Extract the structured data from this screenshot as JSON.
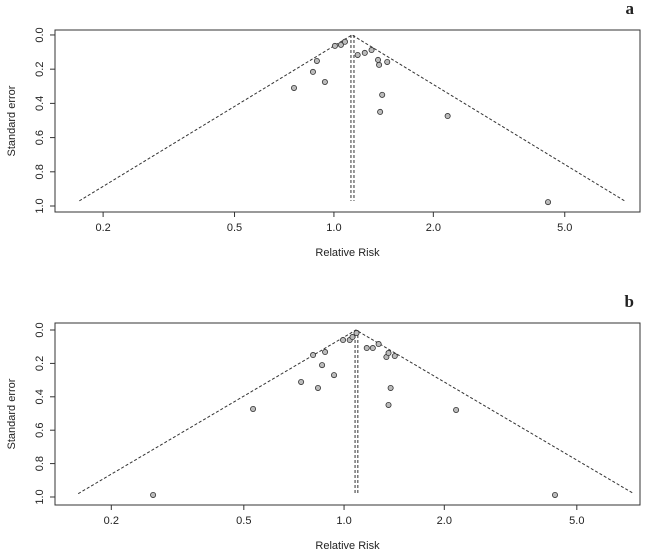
{
  "chart_data": [
    {
      "type": "funnel",
      "panel_label": "a",
      "x_label": "Relative Risk",
      "y_label": "Standard error",
      "log_x": true,
      "y_inverted": true,
      "xlim": [
        0.143,
        8.45
      ],
      "ylim": [
        -0.029,
        1.035
      ],
      "xticks": [
        0.2,
        0.5,
        {
          "value": 1,
          "label": "1.0"
        },
        {
          "value": 2,
          "label": "2.0"
        },
        {
          "value": 5,
          "label": "5.0"
        }
      ],
      "yticks": [
        {
          "value": 0,
          "label": "0.0"
        },
        0.2,
        0.4,
        0.6,
        0.8,
        {
          "value": 1,
          "label": "1.0"
        }
      ],
      "summary_estimate": 1.134,
      "funnel_se_max": 0.97,
      "reference_lines": [
        1.126,
        1.15
      ],
      "point_color": "#bbbbbb",
      "x": [
        1.007,
        1.05,
        1.08,
        1.18,
        1.24,
        1.3,
        1.36,
        1.37,
        1.45,
        0.888,
        0.864,
        0.939,
        0.757,
        1.4,
        1.38,
        2.21,
        4.45
      ],
      "values": [
        0.064,
        0.058,
        0.04,
        0.117,
        0.105,
        0.088,
        0.146,
        0.175,
        0.158,
        0.152,
        0.216,
        0.275,
        0.31,
        0.35,
        0.45,
        0.474,
        0.977
      ]
    },
    {
      "type": "funnel",
      "panel_label": "b",
      "x_label": "Relative Risk",
      "y_label": "Standard error",
      "log_x": true,
      "y_inverted": true,
      "xlim": [
        0.1355,
        7.74
      ],
      "ylim": [
        -0.042,
        1.048
      ],
      "xticks": [
        0.2,
        0.5,
        {
          "value": 1,
          "label": "1.0"
        },
        {
          "value": 2,
          "label": "2.0"
        },
        {
          "value": 5,
          "label": "5.0"
        }
      ],
      "yticks": [
        {
          "value": 0,
          "label": "0.0"
        },
        0.2,
        0.4,
        0.6,
        0.8,
        {
          "value": 1,
          "label": "1.0"
        }
      ],
      "summary_estimate": 1.086,
      "funnel_se_max": 0.98,
      "reference_lines": [
        1.079,
        1.1
      ],
      "point_color": "#bbbbbb",
      "x": [
        0.267,
        0.533,
        0.743,
        0.835,
        0.807,
        0.877,
        0.859,
        0.933,
        0.993,
        1.04,
        1.06,
        1.09,
        1.17,
        1.22,
        1.27,
        1.34,
        1.36,
        1.42,
        1.38,
        1.36,
        2.17,
        4.3
      ],
      "values": [
        0.988,
        0.473,
        0.311,
        0.347,
        0.15,
        0.132,
        0.21,
        0.27,
        0.06,
        0.06,
        0.042,
        0.018,
        0.108,
        0.108,
        0.084,
        0.162,
        0.138,
        0.156,
        0.347,
        0.449,
        0.479,
        0.988
      ]
    }
  ]
}
